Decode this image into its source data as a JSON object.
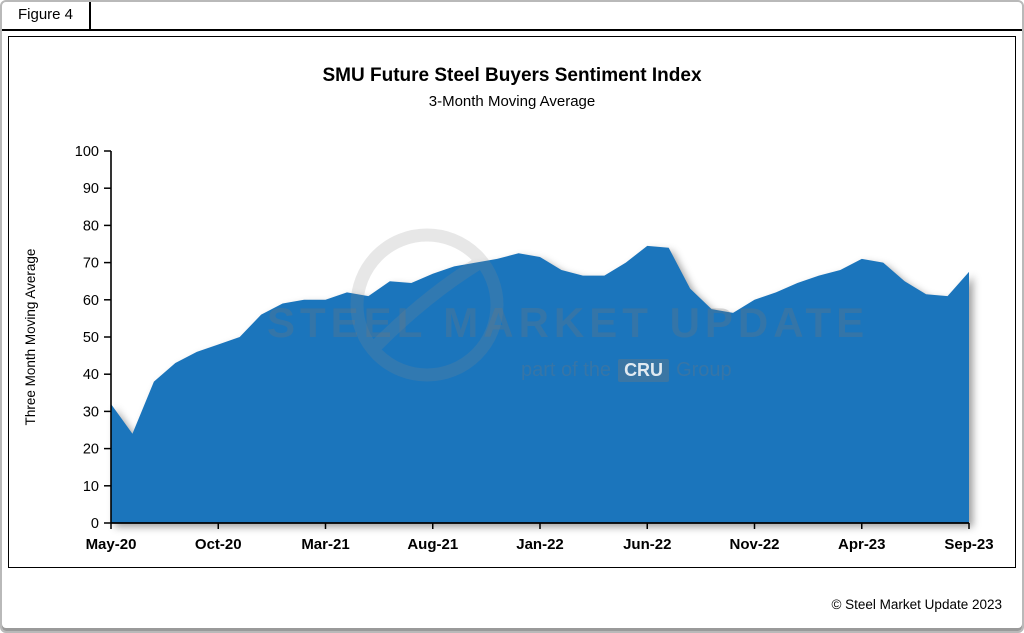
{
  "figure": {
    "label": "Figure 4"
  },
  "footer": {
    "copyright": "© Steel Market Update 2023"
  },
  "watermark": {
    "line1": "STEEL MARKET UPDATE",
    "line2_prefix": "part of the",
    "line2_logo": "CRU",
    "line2_suffix": "Group"
  },
  "chart_data": {
    "type": "area",
    "title": "SMU Future Steel Buyers Sentiment Index",
    "subtitle": "3-Month Moving Average",
    "xlabel": "",
    "ylabel": "Three Month Moving Average",
    "ylim": [
      0,
      100
    ],
    "y_ticks": [
      0,
      10,
      20,
      30,
      40,
      50,
      60,
      70,
      80,
      90,
      100
    ],
    "x_tick_labels": [
      "May-20",
      "Oct-20",
      "Mar-21",
      "Aug-21",
      "Jan-22",
      "Jun-22",
      "Nov-22",
      "Apr-23",
      "Sep-23"
    ],
    "grid": false,
    "legend": "none",
    "fill_color": "#1B75BC",
    "months": [
      "May-20",
      "Jun-20",
      "Jul-20",
      "Aug-20",
      "Sep-20",
      "Oct-20",
      "Nov-20",
      "Dec-20",
      "Jan-21",
      "Feb-21",
      "Mar-21",
      "Apr-21",
      "May-21",
      "Jun-21",
      "Jul-21",
      "Aug-21",
      "Sep-21",
      "Oct-21",
      "Nov-21",
      "Dec-21",
      "Jan-22",
      "Feb-22",
      "Mar-22",
      "Apr-22",
      "May-22",
      "Jun-22",
      "Jul-22",
      "Aug-22",
      "Sep-22",
      "Oct-22",
      "Nov-22",
      "Dec-22",
      "Jan-23",
      "Feb-23",
      "Mar-23",
      "Apr-23",
      "May-23",
      "Jun-23",
      "Jul-23",
      "Aug-23",
      "Sep-23"
    ],
    "values": [
      32,
      24,
      38,
      43,
      46,
      48,
      50,
      56,
      59,
      60,
      60,
      62,
      61,
      65,
      64.5,
      67,
      69,
      70,
      71,
      72.5,
      71.5,
      68,
      66.5,
      66.5,
      70,
      74.5,
      74,
      63,
      57.5,
      56.5,
      60,
      62,
      64.5,
      66.5,
      68,
      71,
      70,
      65,
      61.5,
      61,
      67.5
    ]
  }
}
